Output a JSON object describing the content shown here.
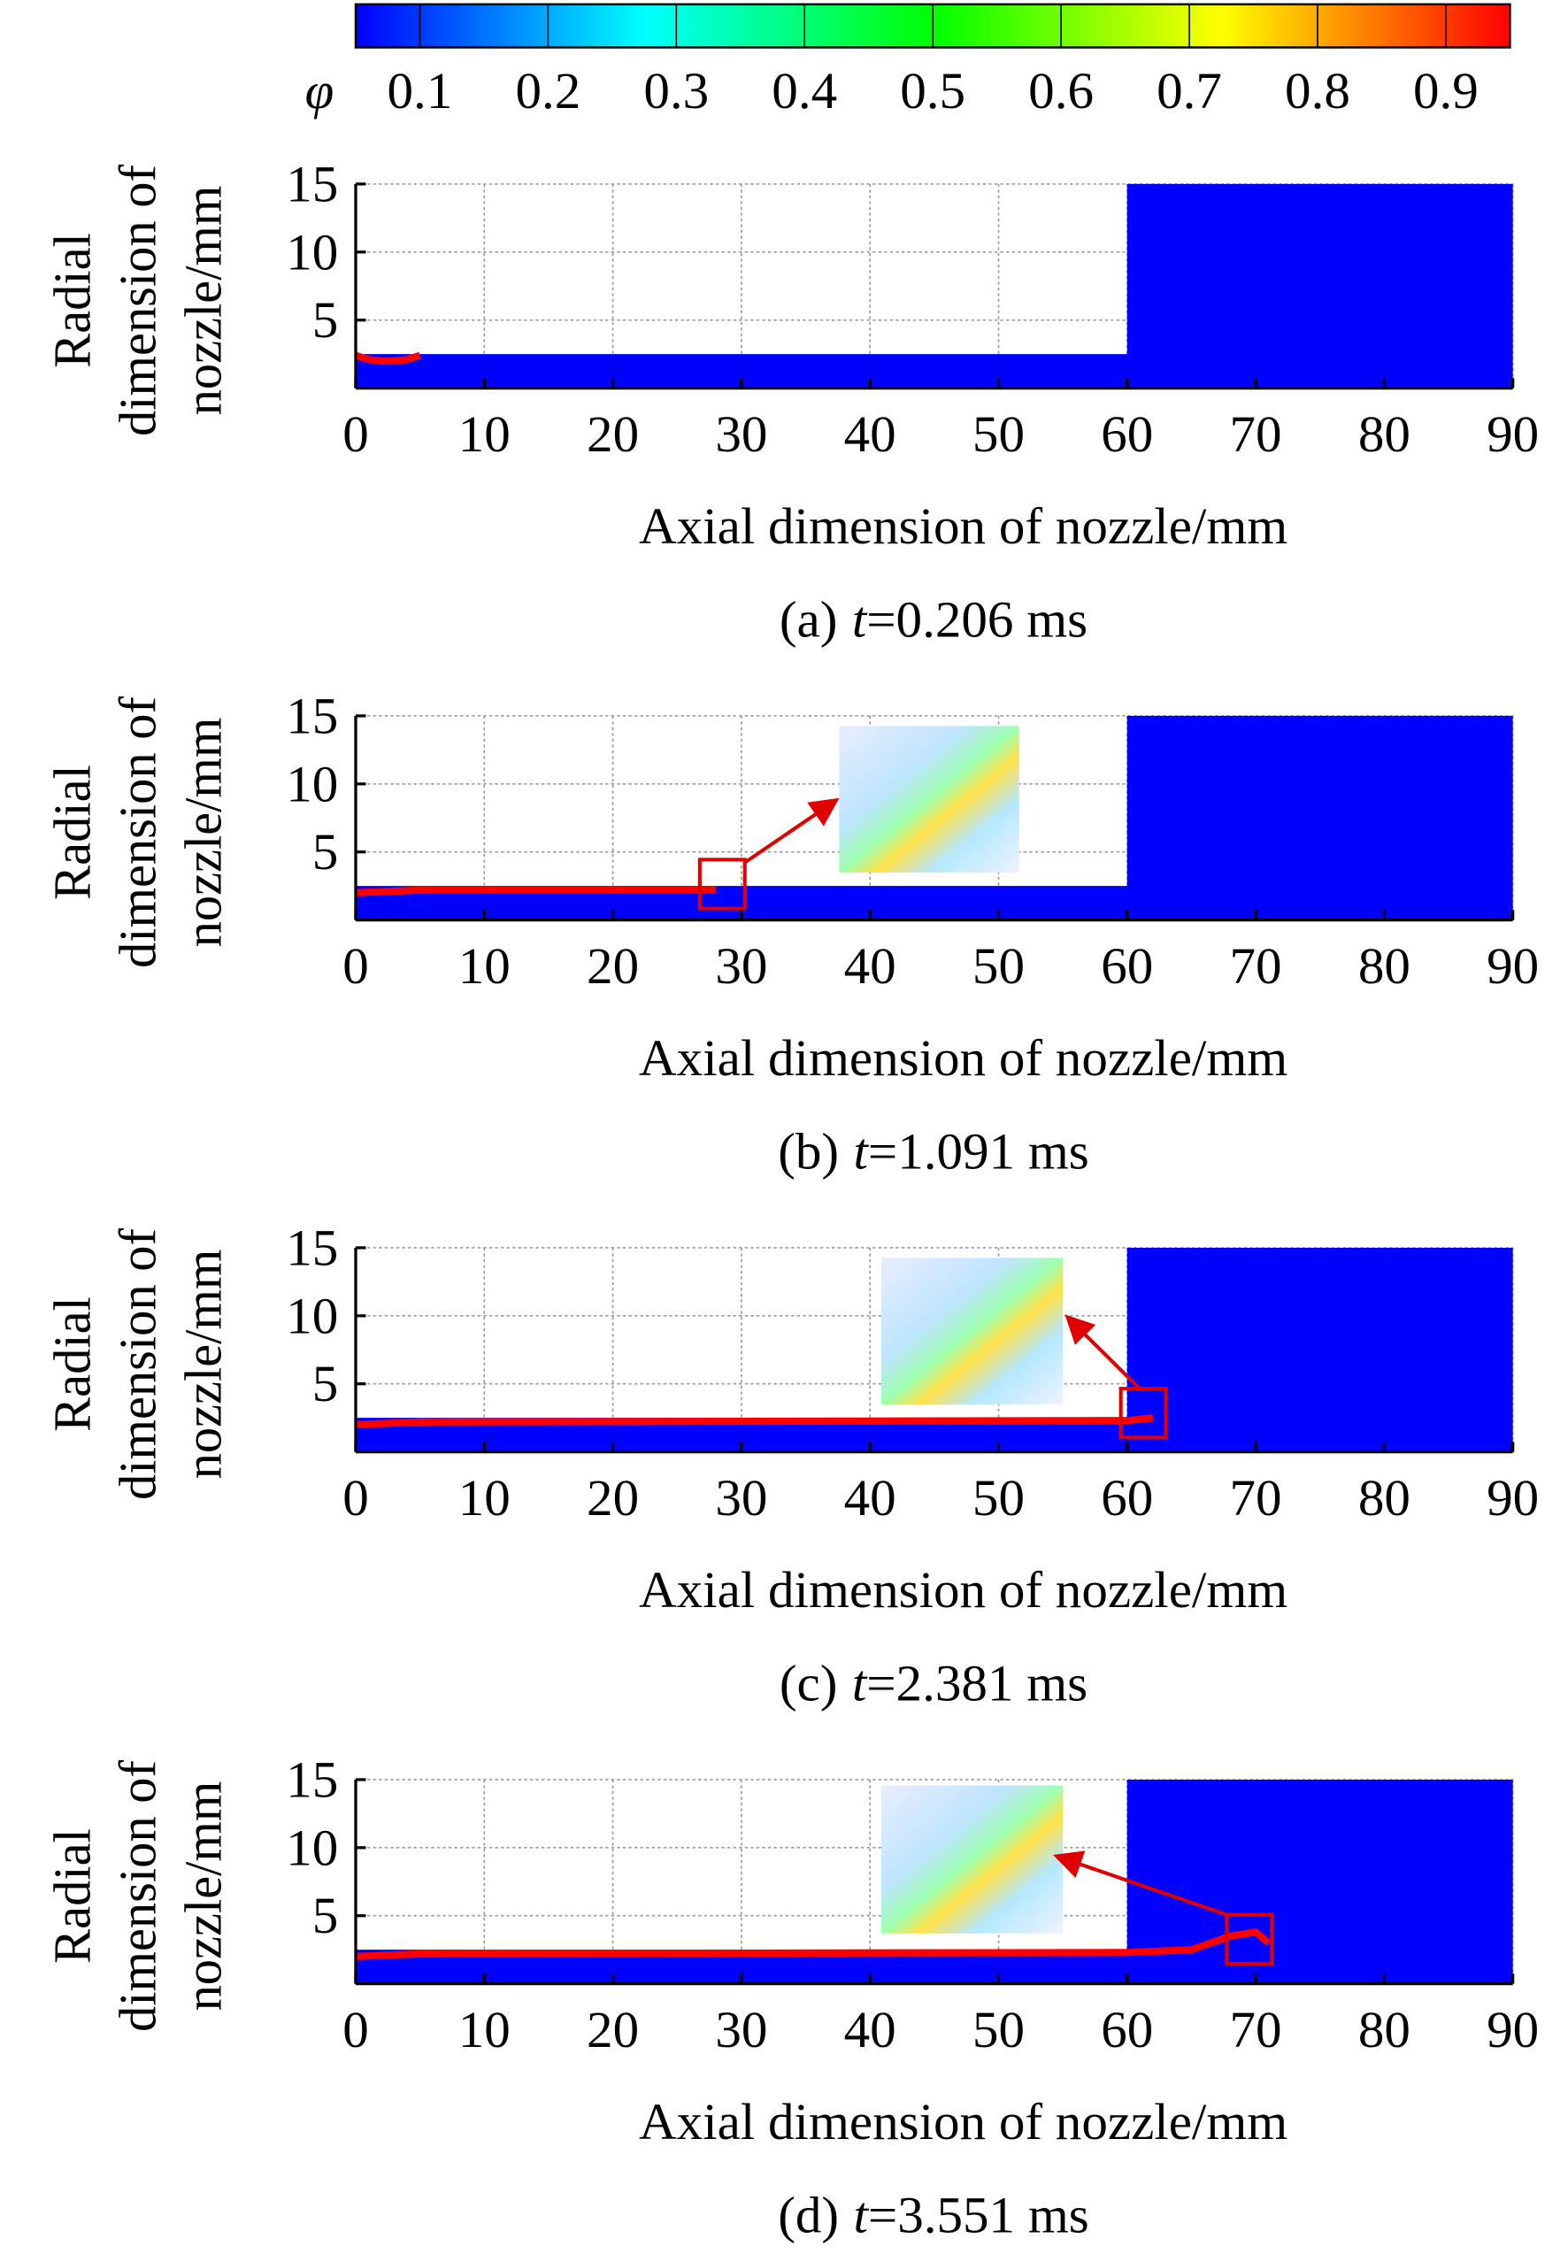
{
  "colorbar": {
    "label": "φ",
    "clim": [
      0.05,
      0.95
    ],
    "ticks": [
      0.1,
      0.2,
      0.3,
      0.4,
      0.5,
      0.6,
      0.7,
      0.8,
      0.9
    ],
    "colors": [
      "#0000ff",
      "#0080ff",
      "#00ffff",
      "#00ff80",
      "#00ff00",
      "#80ff00",
      "#ffff00",
      "#ff8000",
      "#ff0000"
    ]
  },
  "chart_data": [
    {
      "type": "contour",
      "xlabel": "Axial dimension of nozzle/mm",
      "ylabel": [
        "Radial",
        "dimension of",
        "nozzle/mm"
      ],
      "caption": [
        "(a)",
        "t",
        "=0.206 ms"
      ],
      "xlim": [
        0,
        90
      ],
      "ylim": [
        0,
        15
      ],
      "xticks": [
        0,
        10,
        20,
        30,
        40,
        50,
        60,
        70,
        80,
        90
      ],
      "yticks": [
        5,
        10,
        15
      ],
      "grid": true,
      "fluid": {
        "x": [
          0,
          60,
          60,
          90,
          90,
          0
        ],
        "y": [
          2.5,
          2.5,
          15,
          15,
          0,
          0
        ],
        "color": "#0000ff"
      },
      "jet": {
        "x": [
          0,
          1,
          2,
          3,
          4,
          5
        ],
        "y": [
          2.4,
          2.1,
          2.0,
          2.0,
          2.1,
          2.4
        ],
        "color": "#ff0000"
      }
    },
    {
      "type": "contour",
      "xlabel": "Axial dimension of nozzle/mm",
      "ylabel": [
        "Radial",
        "dimension of",
        "nozzle/mm"
      ],
      "caption": [
        "(b)",
        "t",
        "=1.091 ms"
      ],
      "xlim": [
        0,
        90
      ],
      "ylim": [
        0,
        15
      ],
      "xticks": [
        0,
        10,
        20,
        30,
        40,
        50,
        60,
        70,
        80,
        90
      ],
      "yticks": [
        5,
        10,
        15
      ],
      "grid": true,
      "fluid": {
        "x": [
          0,
          60,
          60,
          90,
          90,
          0
        ],
        "y": [
          2.5,
          2.5,
          15,
          15,
          0,
          0
        ],
        "color": "#0000ff"
      },
      "jet": {
        "x": [
          0,
          5,
          28
        ],
        "y": [
          2.0,
          2.2,
          2.2
        ],
        "color": "#ff0000"
      }
    },
    {
      "type": "contour",
      "xlabel": "Axial dimension of nozzle/mm",
      "ylabel": [
        "Radial",
        "dimension of",
        "nozzle/mm"
      ],
      "caption": [
        "(c)",
        "t",
        "=2.381 ms"
      ],
      "xlim": [
        0,
        90
      ],
      "ylim": [
        0,
        15
      ],
      "xticks": [
        0,
        10,
        20,
        30,
        40,
        50,
        60,
        70,
        80,
        90
      ],
      "yticks": [
        5,
        10,
        15
      ],
      "grid": true,
      "fluid": {
        "x": [
          0,
          60,
          60,
          90,
          90,
          0
        ],
        "y": [
          2.5,
          2.5,
          15,
          15,
          0,
          0
        ],
        "color": "#0000ff"
      },
      "jet": {
        "x": [
          0,
          5,
          60,
          62
        ],
        "y": [
          2.0,
          2.2,
          2.3,
          2.5
        ],
        "color": "#ff0000"
      }
    },
    {
      "type": "contour",
      "xlabel": "Axial dimension of nozzle/mm",
      "ylabel": [
        "Radial",
        "dimension of",
        "nozzle/mm"
      ],
      "caption": [
        "(d)",
        "t",
        "=3.551 ms"
      ],
      "xlim": [
        0,
        90
      ],
      "ylim": [
        0,
        15
      ],
      "xticks": [
        0,
        10,
        20,
        30,
        40,
        50,
        60,
        70,
        80,
        90
      ],
      "yticks": [
        5,
        10,
        15
      ],
      "grid": true,
      "fluid": {
        "x": [
          0,
          60,
          60,
          90,
          90,
          0
        ],
        "y": [
          2.5,
          2.5,
          15,
          15,
          0,
          0
        ],
        "color": "#0000ff"
      },
      "jet": {
        "x": [
          0,
          5,
          60,
          65,
          68,
          70,
          71
        ],
        "y": [
          2.0,
          2.2,
          2.3,
          2.5,
          3.5,
          3.8,
          3.0
        ],
        "color": "#ff0000"
      }
    }
  ]
}
